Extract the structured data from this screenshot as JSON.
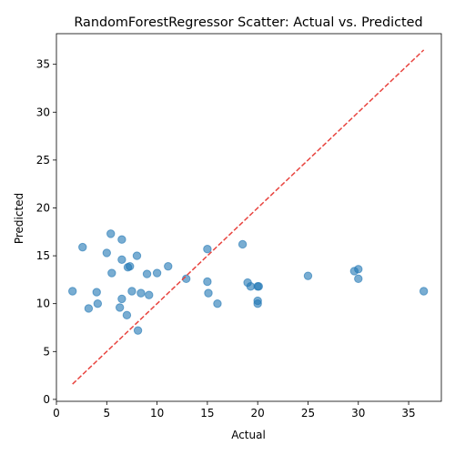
{
  "chart_data": {
    "type": "scatter",
    "title": "RandomForestRegressor Scatter: Actual vs. Predicted",
    "xlabel": "Actual",
    "ylabel": "Predicted",
    "xlim": [
      0,
      38.25
    ],
    "ylim": [
      -0.2,
      38.2
    ],
    "xticks": [
      0,
      5,
      10,
      15,
      20,
      25,
      30,
      35
    ],
    "yticks": [
      0,
      5,
      10,
      15,
      20,
      25,
      30,
      35
    ],
    "grid": false,
    "point_color": "#1f77b4",
    "point_alpha": 0.6,
    "reference_line": {
      "from": [
        1.6,
        1.6
      ],
      "to": [
        36.5,
        36.5
      ],
      "color": "#e8443f",
      "style": "dashed"
    },
    "points": [
      {
        "x": 1.6,
        "y": 11.3
      },
      {
        "x": 2.6,
        "y": 15.9
      },
      {
        "x": 3.2,
        "y": 9.5
      },
      {
        "x": 4.0,
        "y": 11.2
      },
      {
        "x": 4.1,
        "y": 10.0
      },
      {
        "x": 5.0,
        "y": 15.3
      },
      {
        "x": 5.4,
        "y": 17.3
      },
      {
        "x": 5.5,
        "y": 13.2
      },
      {
        "x": 6.3,
        "y": 9.6
      },
      {
        "x": 6.5,
        "y": 16.7
      },
      {
        "x": 6.5,
        "y": 14.6
      },
      {
        "x": 6.5,
        "y": 10.5
      },
      {
        "x": 7.0,
        "y": 8.8
      },
      {
        "x": 7.1,
        "y": 13.8
      },
      {
        "x": 7.3,
        "y": 13.9
      },
      {
        "x": 7.5,
        "y": 11.3
      },
      {
        "x": 8.0,
        "y": 15.0
      },
      {
        "x": 8.1,
        "y": 7.2
      },
      {
        "x": 8.4,
        "y": 11.1
      },
      {
        "x": 9.0,
        "y": 13.1
      },
      {
        "x": 9.2,
        "y": 10.9
      },
      {
        "x": 10.0,
        "y": 13.2
      },
      {
        "x": 11.1,
        "y": 13.9
      },
      {
        "x": 12.9,
        "y": 12.6
      },
      {
        "x": 15.0,
        "y": 15.7
      },
      {
        "x": 15.0,
        "y": 12.3
      },
      {
        "x": 15.1,
        "y": 11.1
      },
      {
        "x": 16.0,
        "y": 10.0
      },
      {
        "x": 18.5,
        "y": 16.2
      },
      {
        "x": 19.0,
        "y": 12.2
      },
      {
        "x": 19.3,
        "y": 11.8
      },
      {
        "x": 20.0,
        "y": 11.8
      },
      {
        "x": 20.1,
        "y": 11.8
      },
      {
        "x": 20.0,
        "y": 10.3
      },
      {
        "x": 20.0,
        "y": 10.0
      },
      {
        "x": 25.0,
        "y": 12.9
      },
      {
        "x": 29.6,
        "y": 13.4
      },
      {
        "x": 30.0,
        "y": 13.6
      },
      {
        "x": 30.0,
        "y": 12.6
      },
      {
        "x": 36.5,
        "y": 11.3
      }
    ]
  }
}
